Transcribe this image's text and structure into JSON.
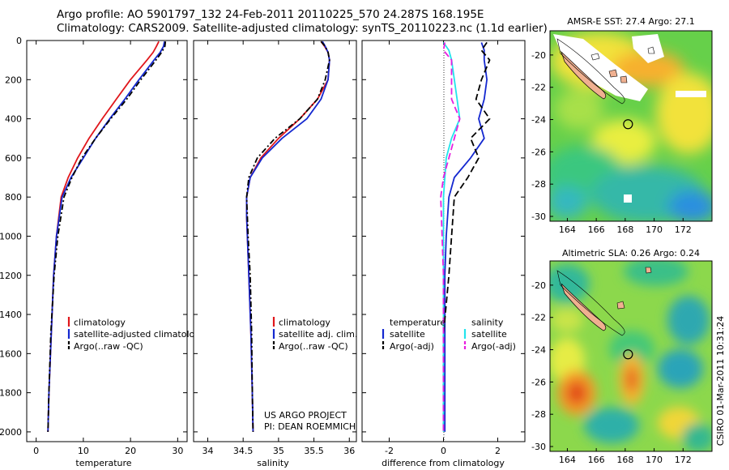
{
  "header": {
    "line1": "Argo profile: AO 5901797_132 24-Feb-2011 20110225_570 24.287S 168.195E",
    "line2": "Climatology: CARS2009. Satellite-adjusted climatology: synTS_20110223.nc (1.1d earlier)"
  },
  "colors": {
    "climatology": "#e0161b",
    "satellite": "#1428d0",
    "argo": "#000000",
    "salinity_satellite": "#22e4ec",
    "salinity_argo": "#e81ee0",
    "land": "#f0b090"
  },
  "chart_data": [
    {
      "type": "line",
      "panel": "temperature",
      "xlabel": "temperature",
      "ylabel": "",
      "xlim": [
        -2,
        32
      ],
      "ylim": [
        2050,
        0
      ],
      "x_ticks": [
        "0",
        "10",
        "20",
        "30"
      ],
      "y_ticks": [
        "0",
        "200",
        "400",
        "600",
        "800",
        "1000",
        "1200",
        "1400",
        "1600",
        "1800",
        "2000"
      ],
      "legend": [
        "climatology",
        "satellite-adjusted climatology",
        "Argo(..raw -QC)"
      ],
      "legend_placement": "lower-center",
      "depth": [
        5,
        30,
        60,
        100,
        200,
        300,
        400,
        500,
        600,
        700,
        800,
        1000,
        1200,
        1500,
        1800,
        2000
      ],
      "series": [
        {
          "name": "climatology",
          "values": [
            26,
            25.5,
            24.8,
            23.5,
            20,
            17,
            14,
            11.2,
            8.8,
            6.8,
            5.3,
            4.3,
            3.7,
            3.2,
            2.7,
            2.5
          ]
        },
        {
          "name": "satellite-adjusted climatology",
          "values": [
            27.2,
            27.0,
            26.3,
            25.0,
            21.8,
            18.8,
            15.6,
            12.6,
            10.0,
            7.4,
            5.5,
            4.3,
            3.7,
            3.2,
            2.7,
            2.5
          ]
        },
        {
          "name": "Argo(..raw -QC)",
          "values": [
            27.4,
            27.3,
            26.6,
            25.4,
            22.2,
            19.2,
            15.8,
            12.6,
            9.7,
            7.6,
            5.9,
            4.6,
            3.8,
            3.1,
            2.7,
            2.5
          ]
        }
      ]
    },
    {
      "type": "line",
      "panel": "salinity",
      "xlabel": "salinity",
      "ylabel": "",
      "xlim": [
        33.8,
        36.1
      ],
      "ylim": [
        2050,
        0
      ],
      "x_ticks": [
        "34",
        "34.5",
        "35",
        "35.5",
        "36"
      ],
      "legend": [
        "climatology",
        "satellite adj. clim.",
        "Argo(..raw -QC)"
      ],
      "legend_placement": "lower-right",
      "depth": [
        5,
        30,
        60,
        100,
        200,
        300,
        400,
        500,
        600,
        700,
        800,
        900,
        1000,
        1200,
        1500,
        1800,
        2000
      ],
      "series": [
        {
          "name": "climatology",
          "values": [
            35.6,
            35.65,
            35.7,
            35.72,
            35.7,
            35.55,
            35.3,
            35.0,
            34.75,
            34.6,
            34.55,
            34.55,
            34.56,
            34.58,
            34.61,
            34.63,
            34.64
          ]
        },
        {
          "name": "satellite adj. clim.",
          "values": [
            35.62,
            35.66,
            35.7,
            35.72,
            35.7,
            35.6,
            35.4,
            35.05,
            34.77,
            34.6,
            34.55,
            34.55,
            34.56,
            34.58,
            34.61,
            34.63,
            34.64
          ]
        },
        {
          "name": "Argo(..raw -QC)",
          "values": [
            35.6,
            35.66,
            35.7,
            35.72,
            35.66,
            35.55,
            35.3,
            34.95,
            34.7,
            34.58,
            34.55,
            34.56,
            34.57,
            34.6,
            34.62,
            34.63,
            34.64
          ]
        }
      ],
      "annotation": [
        "US ARGO PROJECT",
        "PI: DEAN ROEMMICH"
      ]
    },
    {
      "type": "line",
      "panel": "difference",
      "xlabel": "difference from climatology",
      "ylabel": "",
      "xlim": [
        -3,
        3
      ],
      "ylim": [
        2050,
        0
      ],
      "x_ticks": [
        "-2",
        "0",
        "2"
      ],
      "legend": [
        "temperature",
        "satellite",
        "Argo(-adj)",
        "salinity",
        "satellite",
        "Argo(-adj)"
      ],
      "legend_placement": "lower-center",
      "depth": [
        10,
        50,
        100,
        200,
        300,
        400,
        500,
        600,
        700,
        800,
        1000,
        1200,
        1500,
        1800,
        2000
      ],
      "series": [
        {
          "name": "temperature satellite",
          "values": [
            1.4,
            1.5,
            1.5,
            1.6,
            1.5,
            1.3,
            1.5,
            1.0,
            0.4,
            0.2,
            0.1,
            0.05,
            0.05,
            0.05,
            0.05
          ]
        },
        {
          "name": "temperature Argo(-adj)",
          "values": [
            1.6,
            1.4,
            1.7,
            1.4,
            1.2,
            1.7,
            1.0,
            1.3,
            0.9,
            0.4,
            0.3,
            0.2,
            0.0,
            0.0,
            0.0
          ]
        },
        {
          "name": "salinity satellite",
          "values": [
            0.0,
            0.2,
            0.3,
            0.4,
            0.5,
            0.6,
            0.3,
            0.1,
            0.05,
            0.0,
            0.0,
            0.0,
            0.0,
            0.0,
            0.0
          ]
        },
        {
          "name": "salinity Argo(-adj)",
          "values": [
            0.05,
            0.0,
            0.3,
            0.3,
            0.3,
            0.6,
            0.4,
            0.2,
            0.0,
            -0.1,
            -0.05,
            0.0,
            0.0,
            0.0,
            0.0
          ]
        }
      ]
    },
    {
      "type": "heatmap",
      "panel": "map-sst",
      "title": "AMSR-E SST: 27.4 Argo: 27.1",
      "x_ticks": [
        "164",
        "166",
        "168",
        "170",
        "172"
      ],
      "y_ticks": [
        "-20",
        "-22",
        "-24",
        "-26",
        "-28",
        "-30"
      ],
      "xlim": [
        162.8,
        174
      ],
      "ylim": [
        -30.3,
        -18.5
      ],
      "marker": {
        "lon": 168.195,
        "lat": -24.287
      }
    },
    {
      "type": "heatmap",
      "panel": "map-sla",
      "title": "Altimetric SLA: 0.26 Argo: 0.24",
      "x_ticks": [
        "164",
        "166",
        "168",
        "170",
        "172"
      ],
      "y_ticks": [
        "-20",
        "-22",
        "-24",
        "-26",
        "-28",
        "-30"
      ],
      "xlim": [
        162.8,
        174
      ],
      "ylim": [
        -30.3,
        -18.5
      ],
      "marker": {
        "lon": 168.195,
        "lat": -24.287
      }
    }
  ],
  "footer": {
    "timestamp": "CSIRO 01-Mar-2011 10:31:24"
  }
}
